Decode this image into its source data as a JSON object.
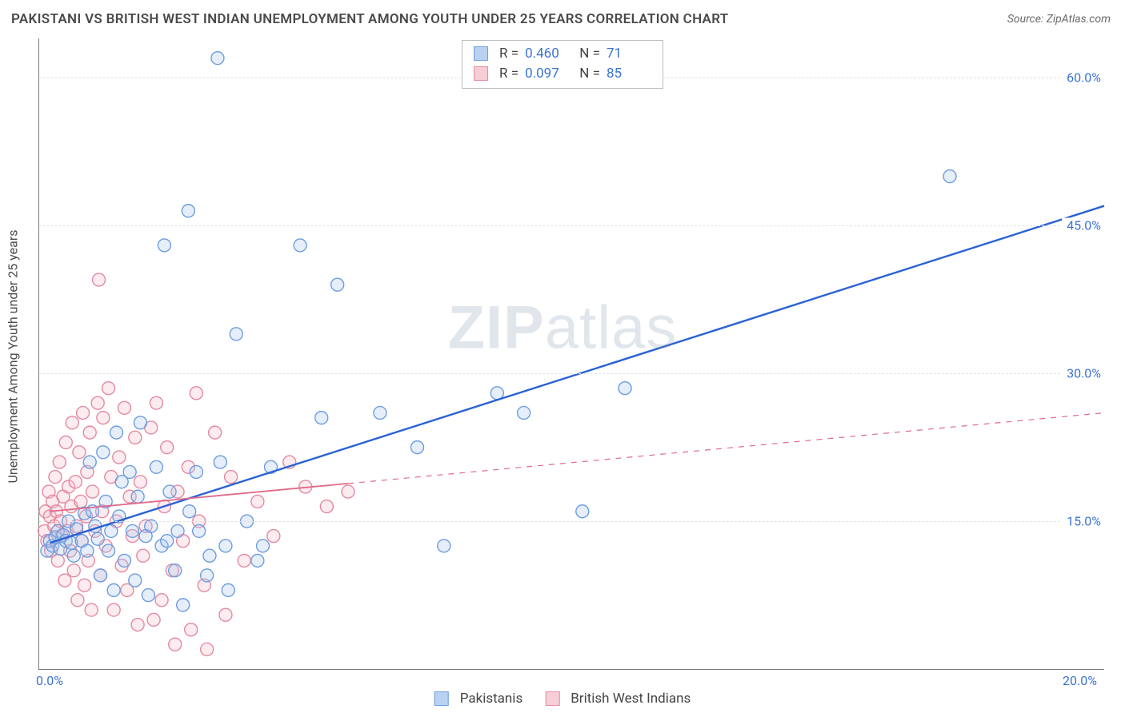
{
  "title": "PAKISTANI VS BRITISH WEST INDIAN UNEMPLOYMENT AMONG YOUTH UNDER 25 YEARS CORRELATION CHART",
  "source_label": "Source: ZipAtlas.com",
  "ylabel": "Unemployment Among Youth under 25 years",
  "watermark_bold": "ZIP",
  "watermark_rest": "atlas",
  "chart": {
    "type": "scatter",
    "xlim": [
      0,
      20
    ],
    "ylim": [
      0,
      64
    ],
    "xticks": [
      {
        "v": 0,
        "label": "0.0%"
      },
      {
        "v": 20,
        "label": "20.0%"
      }
    ],
    "yticks": [
      {
        "v": 15,
        "label": "15.0%"
      },
      {
        "v": 30,
        "label": "30.0%"
      },
      {
        "v": 45,
        "label": "45.0%"
      },
      {
        "v": 60,
        "label": "60.0%"
      }
    ],
    "background_color": "#ffffff",
    "grid_color": "#e3e3e3",
    "axis_color": "#7a7a7a",
    "tick_label_color": "#3b73d1",
    "marker_radius": 8,
    "marker_stroke_width": 1.4,
    "marker_fill_opacity": 0.3,
    "series": [
      {
        "name": "Pakistanis",
        "color_stroke": "#6d9de0",
        "color_fill": "#a8c6ec",
        "line_color": "#2a62d4",
        "legend_swatch_fill": "#b9d2f2",
        "legend_swatch_border": "#6d9de0",
        "R": "0.460",
        "N": "71",
        "trend": {
          "x1": 0.2,
          "y1": 12.8,
          "x2": 20.0,
          "y2": 47.0,
          "solid_until_x": 20.0
        },
        "trend_width": 2.4,
        "points": [
          [
            0.15,
            12.0
          ],
          [
            0.2,
            13.0
          ],
          [
            0.25,
            12.5
          ],
          [
            0.3,
            13.4
          ],
          [
            0.35,
            14.0
          ],
          [
            0.4,
            12.2
          ],
          [
            0.45,
            13.6
          ],
          [
            0.5,
            13.0
          ],
          [
            0.55,
            15.0
          ],
          [
            0.6,
            12.8
          ],
          [
            0.65,
            11.5
          ],
          [
            0.7,
            14.2
          ],
          [
            0.8,
            13.0
          ],
          [
            0.85,
            15.8
          ],
          [
            0.9,
            12.0
          ],
          [
            0.95,
            21.0
          ],
          [
            1.0,
            16.0
          ],
          [
            1.05,
            14.5
          ],
          [
            1.1,
            13.2
          ],
          [
            1.15,
            9.5
          ],
          [
            1.2,
            22.0
          ],
          [
            1.25,
            17.0
          ],
          [
            1.3,
            12.0
          ],
          [
            1.35,
            14.0
          ],
          [
            1.4,
            8.0
          ],
          [
            1.45,
            24.0
          ],
          [
            1.5,
            15.5
          ],
          [
            1.55,
            19.0
          ],
          [
            1.6,
            11.0
          ],
          [
            1.7,
            20.0
          ],
          [
            1.75,
            14.0
          ],
          [
            1.8,
            9.0
          ],
          [
            1.85,
            17.5
          ],
          [
            1.9,
            25.0
          ],
          [
            2.0,
            13.5
          ],
          [
            2.05,
            7.5
          ],
          [
            2.1,
            14.5
          ],
          [
            2.2,
            20.5
          ],
          [
            2.3,
            12.5
          ],
          [
            2.35,
            43.0
          ],
          [
            2.4,
            13.0
          ],
          [
            2.45,
            18.0
          ],
          [
            2.55,
            10.0
          ],
          [
            2.6,
            14.0
          ],
          [
            2.7,
            6.5
          ],
          [
            2.8,
            46.5
          ],
          [
            2.82,
            16.0
          ],
          [
            2.95,
            20.0
          ],
          [
            3.0,
            14.0
          ],
          [
            3.15,
            9.5
          ],
          [
            3.2,
            11.5
          ],
          [
            3.35,
            62.0
          ],
          [
            3.4,
            21.0
          ],
          [
            3.5,
            12.5
          ],
          [
            3.55,
            8.0
          ],
          [
            3.7,
            34.0
          ],
          [
            3.9,
            15.0
          ],
          [
            4.1,
            11.0
          ],
          [
            4.2,
            12.5
          ],
          [
            4.35,
            20.5
          ],
          [
            4.9,
            43.0
          ],
          [
            5.3,
            25.5
          ],
          [
            5.6,
            39.0
          ],
          [
            6.4,
            26.0
          ],
          [
            7.1,
            22.5
          ],
          [
            7.6,
            12.5
          ],
          [
            8.6,
            28.0
          ],
          [
            9.1,
            26.0
          ],
          [
            10.2,
            16.0
          ],
          [
            11.0,
            28.5
          ],
          [
            17.1,
            50.0
          ]
        ]
      },
      {
        "name": "British West Indians",
        "color_stroke": "#e48aa0",
        "color_fill": "#f4bccb",
        "line_color": "#e06a88",
        "legend_swatch_fill": "#f7cdd8",
        "legend_swatch_border": "#e48aa0",
        "R": "0.097",
        "N": "85",
        "trend": {
          "x1": 0.2,
          "y1": 16.0,
          "x2": 20.0,
          "y2": 26.0,
          "solid_until_x": 5.8
        },
        "trend_width": 1.8,
        "dash": "7 7",
        "points": [
          [
            0.1,
            14.0
          ],
          [
            0.12,
            16.0
          ],
          [
            0.15,
            13.0
          ],
          [
            0.18,
            18.0
          ],
          [
            0.2,
            15.5
          ],
          [
            0.22,
            12.0
          ],
          [
            0.25,
            17.0
          ],
          [
            0.28,
            14.5
          ],
          [
            0.3,
            19.5
          ],
          [
            0.32,
            16.0
          ],
          [
            0.35,
            11.0
          ],
          [
            0.38,
            21.0
          ],
          [
            0.4,
            15.0
          ],
          [
            0.42,
            13.5
          ],
          [
            0.45,
            17.5
          ],
          [
            0.48,
            9.0
          ],
          [
            0.5,
            23.0
          ],
          [
            0.52,
            14.0
          ],
          [
            0.55,
            18.5
          ],
          [
            0.58,
            12.0
          ],
          [
            0.6,
            16.5
          ],
          [
            0.62,
            25.0
          ],
          [
            0.65,
            10.0
          ],
          [
            0.68,
            19.0
          ],
          [
            0.7,
            14.5
          ],
          [
            0.72,
            7.0
          ],
          [
            0.75,
            22.0
          ],
          [
            0.78,
            17.0
          ],
          [
            0.8,
            13.0
          ],
          [
            0.82,
            26.0
          ],
          [
            0.85,
            8.5
          ],
          [
            0.88,
            15.5
          ],
          [
            0.9,
            20.0
          ],
          [
            0.92,
            11.0
          ],
          [
            0.95,
            24.0
          ],
          [
            0.98,
            6.0
          ],
          [
            1.0,
            18.0
          ],
          [
            1.05,
            14.0
          ],
          [
            1.1,
            27.0
          ],
          [
            1.12,
            39.5
          ],
          [
            1.15,
            9.5
          ],
          [
            1.18,
            16.0
          ],
          [
            1.2,
            25.5
          ],
          [
            1.25,
            12.5
          ],
          [
            1.3,
            28.5
          ],
          [
            1.35,
            19.5
          ],
          [
            1.4,
            6.0
          ],
          [
            1.45,
            15.0
          ],
          [
            1.5,
            21.5
          ],
          [
            1.55,
            10.5
          ],
          [
            1.6,
            26.5
          ],
          [
            1.65,
            8.0
          ],
          [
            1.7,
            17.5
          ],
          [
            1.75,
            13.5
          ],
          [
            1.8,
            23.5
          ],
          [
            1.85,
            4.5
          ],
          [
            1.9,
            19.0
          ],
          [
            1.95,
            11.5
          ],
          [
            2.0,
            14.5
          ],
          [
            2.1,
            24.5
          ],
          [
            2.15,
            5.0
          ],
          [
            2.2,
            27.0
          ],
          [
            2.3,
            7.0
          ],
          [
            2.35,
            16.5
          ],
          [
            2.4,
            22.5
          ],
          [
            2.5,
            10.0
          ],
          [
            2.55,
            2.5
          ],
          [
            2.6,
            18.0
          ],
          [
            2.7,
            13.0
          ],
          [
            2.8,
            20.5
          ],
          [
            2.85,
            4.0
          ],
          [
            2.95,
            28.0
          ],
          [
            3.0,
            15.0
          ],
          [
            3.1,
            8.5
          ],
          [
            3.15,
            2.0
          ],
          [
            3.3,
            24.0
          ],
          [
            3.5,
            5.5
          ],
          [
            3.6,
            19.5
          ],
          [
            3.85,
            11.0
          ],
          [
            4.1,
            17.0
          ],
          [
            4.4,
            13.5
          ],
          [
            4.7,
            21.0
          ],
          [
            5.0,
            18.5
          ],
          [
            5.4,
            16.5
          ],
          [
            5.8,
            18.0
          ]
        ]
      }
    ]
  }
}
